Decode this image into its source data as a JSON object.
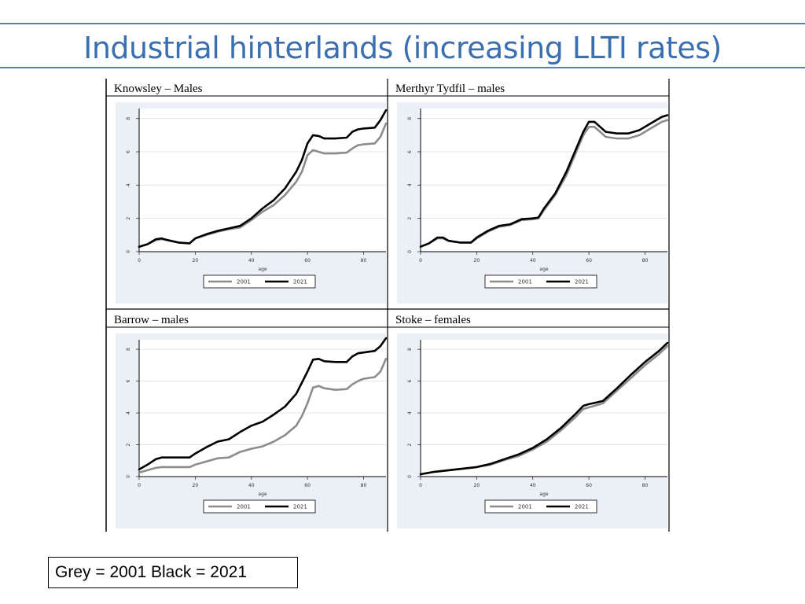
{
  "slide": {
    "title": "Industrial hinterlands (increasing LLTI rates)",
    "note": "Grey = 2001 Black = 2021"
  },
  "colors": {
    "accent": "#4f81bd",
    "title": "#3a6fb0",
    "series_2001": "#8c8c8c",
    "series_2021": "#000000",
    "plot_bg": "#eaf0f5"
  },
  "chart_data": [
    {
      "type": "line",
      "title": "Knowsley – Males",
      "xlabel": "age",
      "ylabel": "",
      "xlim": [
        0,
        88
      ],
      "ylim": [
        0,
        8.6
      ],
      "xticks": [
        "0",
        "20",
        "40",
        "60",
        "80"
      ],
      "yticks": [
        "0",
        "2",
        "4",
        "6",
        "8"
      ],
      "legend": [
        "2001",
        "2021"
      ],
      "legend_position": "bottom",
      "grid": true,
      "series": [
        {
          "name": "2001",
          "x": [
            0,
            3,
            6,
            8,
            10,
            14,
            18,
            20,
            24,
            28,
            32,
            36,
            40,
            44,
            48,
            52,
            56,
            58,
            60,
            62,
            64,
            66,
            70,
            74,
            76,
            78,
            80,
            84,
            86,
            88
          ],
          "y": [
            0.3,
            0.45,
            0.7,
            0.75,
            0.7,
            0.55,
            0.5,
            0.8,
            1.0,
            1.2,
            1.35,
            1.45,
            1.9,
            2.4,
            2.8,
            3.4,
            4.2,
            4.8,
            5.8,
            6.1,
            6.0,
            5.9,
            5.9,
            5.95,
            6.2,
            6.4,
            6.45,
            6.5,
            6.9,
            7.7
          ]
        },
        {
          "name": "2021",
          "x": [
            0,
            3,
            6,
            8,
            10,
            14,
            18,
            20,
            24,
            28,
            32,
            36,
            40,
            44,
            48,
            52,
            56,
            58,
            60,
            62,
            64,
            66,
            70,
            74,
            76,
            78,
            80,
            84,
            86,
            88
          ],
          "y": [
            0.3,
            0.45,
            0.75,
            0.8,
            0.7,
            0.55,
            0.5,
            0.8,
            1.05,
            1.25,
            1.4,
            1.55,
            2.0,
            2.6,
            3.1,
            3.8,
            4.8,
            5.5,
            6.5,
            7.0,
            6.95,
            6.8,
            6.8,
            6.85,
            7.2,
            7.35,
            7.4,
            7.45,
            7.9,
            8.5
          ]
        }
      ]
    },
    {
      "type": "line",
      "title": "Merthyr Tydfil – males",
      "xlabel": "age",
      "ylabel": "",
      "xlim": [
        0,
        88
      ],
      "ylim": [
        0,
        8.6
      ],
      "xticks": [
        "0",
        "20",
        "40",
        "60",
        "80"
      ],
      "yticks": [
        "0",
        "2",
        "4",
        "6",
        "8"
      ],
      "legend": [
        "2001",
        "2021"
      ],
      "legend_position": "bottom",
      "grid": true,
      "series": [
        {
          "name": "2001",
          "x": [
            0,
            3,
            6,
            8,
            10,
            14,
            18,
            20,
            24,
            28,
            32,
            36,
            40,
            42,
            44,
            48,
            52,
            56,
            58,
            60,
            62,
            64,
            66,
            70,
            74,
            78,
            82,
            86,
            88
          ],
          "y": [
            0.3,
            0.5,
            0.8,
            0.8,
            0.65,
            0.55,
            0.55,
            0.8,
            1.2,
            1.5,
            1.6,
            1.9,
            1.95,
            2.0,
            2.5,
            3.4,
            4.6,
            6.2,
            7.0,
            7.5,
            7.5,
            7.2,
            6.9,
            6.8,
            6.8,
            7.0,
            7.4,
            7.8,
            7.9
          ]
        },
        {
          "name": "2021",
          "x": [
            0,
            3,
            6,
            8,
            10,
            14,
            18,
            20,
            24,
            28,
            32,
            36,
            40,
            42,
            44,
            48,
            52,
            56,
            58,
            60,
            62,
            64,
            66,
            70,
            74,
            78,
            82,
            86,
            88
          ],
          "y": [
            0.3,
            0.5,
            0.85,
            0.85,
            0.65,
            0.55,
            0.55,
            0.85,
            1.25,
            1.55,
            1.65,
            1.95,
            2.0,
            2.05,
            2.6,
            3.5,
            4.8,
            6.4,
            7.2,
            7.8,
            7.8,
            7.5,
            7.2,
            7.1,
            7.1,
            7.3,
            7.7,
            8.1,
            8.2
          ]
        }
      ]
    },
    {
      "type": "line",
      "title": "Barrow – males",
      "xlabel": "age",
      "ylabel": "",
      "xlim": [
        0,
        88
      ],
      "ylim": [
        0,
        8.6
      ],
      "xticks": [
        "0",
        "20",
        "40",
        "60",
        "80"
      ],
      "yticks": [
        "0",
        "2",
        "4",
        "6",
        "8"
      ],
      "legend": [
        "2001",
        "2021"
      ],
      "legend_position": "bottom",
      "grid": true,
      "series": [
        {
          "name": "2001",
          "x": [
            0,
            3,
            6,
            8,
            10,
            14,
            18,
            20,
            24,
            28,
            32,
            36,
            40,
            44,
            48,
            52,
            56,
            58,
            60,
            62,
            64,
            66,
            70,
            74,
            76,
            78,
            80,
            84,
            86,
            88
          ],
          "y": [
            0.25,
            0.4,
            0.55,
            0.6,
            0.6,
            0.6,
            0.6,
            0.75,
            0.95,
            1.15,
            1.2,
            1.55,
            1.75,
            1.9,
            2.2,
            2.6,
            3.2,
            3.8,
            4.6,
            5.6,
            5.7,
            5.55,
            5.45,
            5.5,
            5.8,
            6.0,
            6.15,
            6.25,
            6.6,
            7.4
          ]
        },
        {
          "name": "2021",
          "x": [
            0,
            3,
            6,
            8,
            10,
            14,
            18,
            20,
            24,
            28,
            32,
            36,
            40,
            44,
            48,
            52,
            56,
            58,
            60,
            62,
            64,
            66,
            70,
            74,
            76,
            78,
            80,
            84,
            86,
            88
          ],
          "y": [
            0.45,
            0.75,
            1.1,
            1.2,
            1.2,
            1.2,
            1.2,
            1.45,
            1.85,
            2.2,
            2.35,
            2.8,
            3.2,
            3.45,
            3.9,
            4.4,
            5.2,
            5.9,
            6.6,
            7.35,
            7.4,
            7.25,
            7.2,
            7.2,
            7.55,
            7.75,
            7.8,
            7.9,
            8.2,
            8.7
          ]
        }
      ]
    },
    {
      "type": "line",
      "title": "Stoke – females",
      "xlabel": "age",
      "ylabel": "",
      "xlim": [
        0,
        88
      ],
      "ylim": [
        0,
        8.6
      ],
      "xticks": [
        "0",
        "20",
        "40",
        "60",
        "80"
      ],
      "yticks": [
        "0",
        "2",
        "4",
        "6",
        "8"
      ],
      "legend": [
        "2001",
        "2021"
      ],
      "legend_position": "bottom",
      "grid": true,
      "series": [
        {
          "name": "2001",
          "x": [
            0,
            5,
            10,
            15,
            20,
            25,
            30,
            35,
            40,
            45,
            50,
            55,
            58,
            60,
            65,
            70,
            75,
            80,
            85,
            88
          ],
          "y": [
            0.15,
            0.3,
            0.4,
            0.5,
            0.6,
            0.75,
            1.05,
            1.3,
            1.7,
            2.2,
            2.9,
            3.7,
            4.25,
            4.35,
            4.6,
            5.4,
            6.2,
            7.0,
            7.7,
            8.2
          ]
        },
        {
          "name": "2021",
          "x": [
            0,
            5,
            10,
            15,
            20,
            25,
            30,
            35,
            40,
            45,
            50,
            55,
            58,
            60,
            65,
            70,
            75,
            80,
            85,
            88
          ],
          "y": [
            0.15,
            0.3,
            0.4,
            0.5,
            0.6,
            0.8,
            1.1,
            1.4,
            1.8,
            2.35,
            3.05,
            3.9,
            4.45,
            4.55,
            4.75,
            5.55,
            6.4,
            7.2,
            7.9,
            8.4
          ]
        }
      ]
    }
  ]
}
